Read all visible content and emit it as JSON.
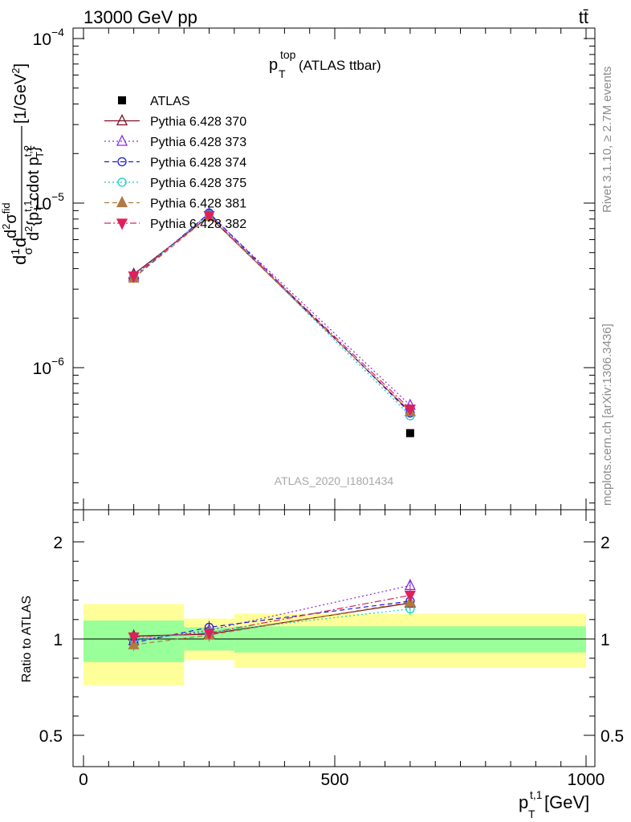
{
  "header": {
    "left": "13000 GeV pp",
    "right": "tt̄"
  },
  "side_labels": {
    "rivet": "Rivet 3.1.10, ≥ 2.7M events",
    "mcplots": "mcplots.cern.ch [arXiv:1306.3436]"
  },
  "chart_data": [
    {
      "type": "line",
      "title_main": "p",
      "title_sup": "top",
      "title_sub": "T",
      "title_rest": " (ATLAS ttbar)",
      "watermark": "ATLAS_2020_I1801434",
      "yscale": "log",
      "xlim": [
        -20,
        1000
      ],
      "ylim": [
        1.8e-07,
        0.000115
      ],
      "ylabel_parts": {
        "frac_num_outer": "d",
        "frac_den_outer": "σ",
        "one": "1",
        "d2sigma_num": "d",
        "d2sigma_num_sup": "2",
        "d2sigma_num_rest": "σ",
        "d2sigma_num_sup2": "fid",
        "denominator": "d",
        "den_sup": "2",
        "den_text": "{p",
        "den_sup2": "t,1",
        "den_sub": "T",
        "den_text2": " cdot p",
        "den_sup3": "t,2",
        "den_sub2": "T",
        "den_close": "}",
        "units": "[1/GeV",
        "units_sup": "2",
        "units_close": "]"
      },
      "ytick_labels": [
        {
          "v": 0.0001,
          "base": "10",
          "exp": "−4"
        },
        {
          "v": 1e-05,
          "base": "10",
          "exp": "−5"
        },
        {
          "v": 1e-06,
          "base": "10",
          "exp": "−6"
        }
      ],
      "x": [
        100,
        250,
        650
      ],
      "x_edges": [
        0,
        200,
        300,
        1000
      ],
      "data": {
        "name": "ATLAS",
        "values": [
          null,
          null,
          4e-07
        ]
      },
      "series": [
        {
          "name": "Pythia 6.428 370",
          "color": "#7f0f1f",
          "dash": "none",
          "marker": "tri-up-open",
          "values": [
            3.7e-06,
            8.3e-06,
            5.4e-07
          ]
        },
        {
          "name": "Pythia 6.428 373",
          "color": "#8a2be2",
          "dash": "2,3",
          "marker": "tri-up-open",
          "values": [
            3.6e-06,
            8.6e-06,
            5.9e-07
          ]
        },
        {
          "name": "Pythia 6.428 374",
          "color": "#1a1ae6",
          "dash": "6,4",
          "marker": "circle-open",
          "values": [
            3.5e-06,
            8.7e-06,
            5.3e-07
          ]
        },
        {
          "name": "Pythia 6.428 375",
          "color": "#10d0c0",
          "dash": "2,3",
          "marker": "circle-open",
          "values": [
            3.6e-06,
            8.5e-06,
            5.1e-07
          ]
        },
        {
          "name": "Pythia 6.428 381",
          "color": "#b07a40",
          "dash": "6,4",
          "marker": "tri-up-filled",
          "values": [
            3.5e-06,
            8.3e-06,
            5.4e-07
          ]
        },
        {
          "name": "Pythia 6.428 382",
          "color": "#e0205a",
          "dash": "8,3,2,3",
          "marker": "tri-down-filled",
          "values": [
            3.6e-06,
            8.4e-06,
            5.6e-07
          ]
        }
      ]
    },
    {
      "type": "line",
      "ylabel": "Ratio to ATLAS",
      "xlabel_main": "p",
      "xlabel_sup": "t,1",
      "xlabel_sub": "T",
      "xlabel_rest": " [GeV]",
      "ylim": [
        0.4,
        2.45
      ],
      "ytick_labels": [
        "2",
        "1",
        "0.5"
      ],
      "ytick_values": [
        2,
        1,
        0.5
      ],
      "xtick_labels": [
        "0",
        "500",
        "1000"
      ],
      "xtick_values": [
        0,
        500,
        1000
      ],
      "band_outer": [
        [
          0.76,
          1.36
        ],
        [
          0.89,
          1.21
        ],
        [
          0.85,
          1.26
        ]
      ],
      "band_inner": [
        [
          0.88,
          1.19
        ],
        [
          0.94,
          1.12
        ],
        [
          0.93,
          1.13
        ]
      ],
      "series": [
        {
          "name": "Pythia 6.428 370",
          "values": [
            1.03,
            1.05,
            1.37
          ]
        },
        {
          "name": "Pythia 6.428 373",
          "values": [
            0.99,
            1.09,
            1.55
          ]
        },
        {
          "name": "Pythia 6.428 374",
          "values": [
            0.98,
            1.12,
            1.39
          ]
        },
        {
          "name": "Pythia 6.428 375",
          "values": [
            1.0,
            1.07,
            1.31
          ]
        },
        {
          "name": "Pythia 6.428 381",
          "values": [
            0.97,
            1.04,
            1.38
          ]
        },
        {
          "name": "Pythia 6.428 382",
          "values": [
            1.02,
            1.06,
            1.45
          ]
        }
      ]
    }
  ]
}
